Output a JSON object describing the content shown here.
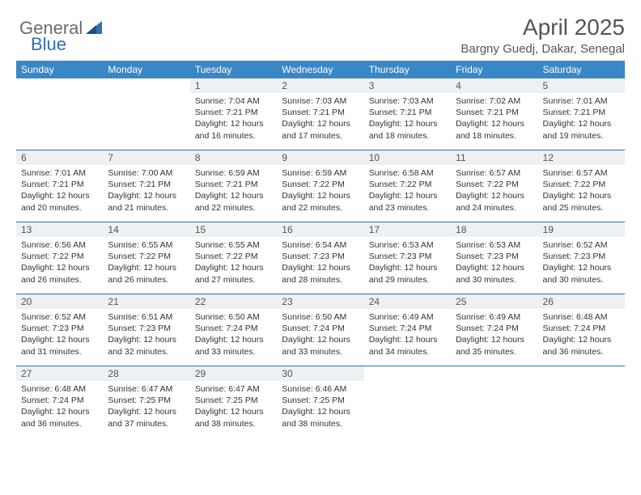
{
  "brand": {
    "part1": "General",
    "part2": "Blue"
  },
  "header": {
    "title": "April 2025",
    "subtitle": "Bargny Guedj, Dakar, Senegal"
  },
  "colors": {
    "header_bg": "#3a87c7",
    "header_text": "#ffffff",
    "row_divider": "#2f6fb3",
    "daynum_bg": "#eef0f1",
    "text": "#333333",
    "brand_gray": "#6b6b6b",
    "brand_blue": "#2f6fb3"
  },
  "weekdays": [
    "Sunday",
    "Monday",
    "Tuesday",
    "Wednesday",
    "Thursday",
    "Friday",
    "Saturday"
  ],
  "weeks": [
    [
      null,
      null,
      {
        "n": "1",
        "sr": "Sunrise: 7:04 AM",
        "ss": "Sunset: 7:21 PM",
        "dl": "Daylight: 12 hours and 16 minutes."
      },
      {
        "n": "2",
        "sr": "Sunrise: 7:03 AM",
        "ss": "Sunset: 7:21 PM",
        "dl": "Daylight: 12 hours and 17 minutes."
      },
      {
        "n": "3",
        "sr": "Sunrise: 7:03 AM",
        "ss": "Sunset: 7:21 PM",
        "dl": "Daylight: 12 hours and 18 minutes."
      },
      {
        "n": "4",
        "sr": "Sunrise: 7:02 AM",
        "ss": "Sunset: 7:21 PM",
        "dl": "Daylight: 12 hours and 18 minutes."
      },
      {
        "n": "5",
        "sr": "Sunrise: 7:01 AM",
        "ss": "Sunset: 7:21 PM",
        "dl": "Daylight: 12 hours and 19 minutes."
      }
    ],
    [
      {
        "n": "6",
        "sr": "Sunrise: 7:01 AM",
        "ss": "Sunset: 7:21 PM",
        "dl": "Daylight: 12 hours and 20 minutes."
      },
      {
        "n": "7",
        "sr": "Sunrise: 7:00 AM",
        "ss": "Sunset: 7:21 PM",
        "dl": "Daylight: 12 hours and 21 minutes."
      },
      {
        "n": "8",
        "sr": "Sunrise: 6:59 AM",
        "ss": "Sunset: 7:21 PM",
        "dl": "Daylight: 12 hours and 22 minutes."
      },
      {
        "n": "9",
        "sr": "Sunrise: 6:59 AM",
        "ss": "Sunset: 7:22 PM",
        "dl": "Daylight: 12 hours and 22 minutes."
      },
      {
        "n": "10",
        "sr": "Sunrise: 6:58 AM",
        "ss": "Sunset: 7:22 PM",
        "dl": "Daylight: 12 hours and 23 minutes."
      },
      {
        "n": "11",
        "sr": "Sunrise: 6:57 AM",
        "ss": "Sunset: 7:22 PM",
        "dl": "Daylight: 12 hours and 24 minutes."
      },
      {
        "n": "12",
        "sr": "Sunrise: 6:57 AM",
        "ss": "Sunset: 7:22 PM",
        "dl": "Daylight: 12 hours and 25 minutes."
      }
    ],
    [
      {
        "n": "13",
        "sr": "Sunrise: 6:56 AM",
        "ss": "Sunset: 7:22 PM",
        "dl": "Daylight: 12 hours and 26 minutes."
      },
      {
        "n": "14",
        "sr": "Sunrise: 6:55 AM",
        "ss": "Sunset: 7:22 PM",
        "dl": "Daylight: 12 hours and 26 minutes."
      },
      {
        "n": "15",
        "sr": "Sunrise: 6:55 AM",
        "ss": "Sunset: 7:22 PM",
        "dl": "Daylight: 12 hours and 27 minutes."
      },
      {
        "n": "16",
        "sr": "Sunrise: 6:54 AM",
        "ss": "Sunset: 7:23 PM",
        "dl": "Daylight: 12 hours and 28 minutes."
      },
      {
        "n": "17",
        "sr": "Sunrise: 6:53 AM",
        "ss": "Sunset: 7:23 PM",
        "dl": "Daylight: 12 hours and 29 minutes."
      },
      {
        "n": "18",
        "sr": "Sunrise: 6:53 AM",
        "ss": "Sunset: 7:23 PM",
        "dl": "Daylight: 12 hours and 30 minutes."
      },
      {
        "n": "19",
        "sr": "Sunrise: 6:52 AM",
        "ss": "Sunset: 7:23 PM",
        "dl": "Daylight: 12 hours and 30 minutes."
      }
    ],
    [
      {
        "n": "20",
        "sr": "Sunrise: 6:52 AM",
        "ss": "Sunset: 7:23 PM",
        "dl": "Daylight: 12 hours and 31 minutes."
      },
      {
        "n": "21",
        "sr": "Sunrise: 6:51 AM",
        "ss": "Sunset: 7:23 PM",
        "dl": "Daylight: 12 hours and 32 minutes."
      },
      {
        "n": "22",
        "sr": "Sunrise: 6:50 AM",
        "ss": "Sunset: 7:24 PM",
        "dl": "Daylight: 12 hours and 33 minutes."
      },
      {
        "n": "23",
        "sr": "Sunrise: 6:50 AM",
        "ss": "Sunset: 7:24 PM",
        "dl": "Daylight: 12 hours and 33 minutes."
      },
      {
        "n": "24",
        "sr": "Sunrise: 6:49 AM",
        "ss": "Sunset: 7:24 PM",
        "dl": "Daylight: 12 hours and 34 minutes."
      },
      {
        "n": "25",
        "sr": "Sunrise: 6:49 AM",
        "ss": "Sunset: 7:24 PM",
        "dl": "Daylight: 12 hours and 35 minutes."
      },
      {
        "n": "26",
        "sr": "Sunrise: 6:48 AM",
        "ss": "Sunset: 7:24 PM",
        "dl": "Daylight: 12 hours and 36 minutes."
      }
    ],
    [
      {
        "n": "27",
        "sr": "Sunrise: 6:48 AM",
        "ss": "Sunset: 7:24 PM",
        "dl": "Daylight: 12 hours and 36 minutes."
      },
      {
        "n": "28",
        "sr": "Sunrise: 6:47 AM",
        "ss": "Sunset: 7:25 PM",
        "dl": "Daylight: 12 hours and 37 minutes."
      },
      {
        "n": "29",
        "sr": "Sunrise: 6:47 AM",
        "ss": "Sunset: 7:25 PM",
        "dl": "Daylight: 12 hours and 38 minutes."
      },
      {
        "n": "30",
        "sr": "Sunrise: 6:46 AM",
        "ss": "Sunset: 7:25 PM",
        "dl": "Daylight: 12 hours and 38 minutes."
      },
      null,
      null,
      null
    ]
  ]
}
